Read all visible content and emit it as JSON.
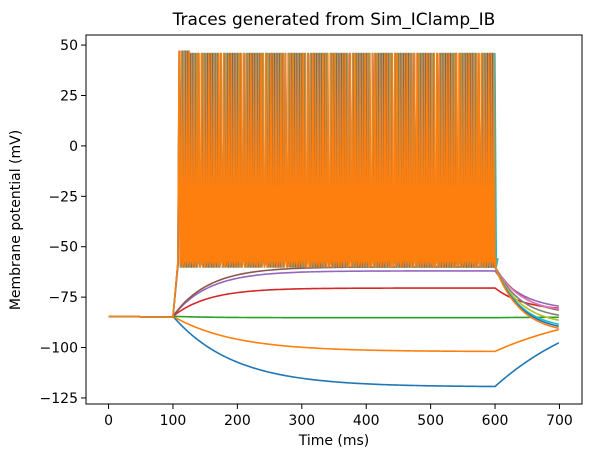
{
  "chart_data": {
    "type": "line",
    "title": "Traces generated from Sim_IClamp_IB",
    "xlabel": "Time (ms)",
    "ylabel": "Membrane potential (mV)",
    "xlim": [
      -35,
      735
    ],
    "ylim": [
      -128,
      55
    ],
    "xticks": [
      0,
      100,
      200,
      300,
      400,
      500,
      600,
      700
    ],
    "yticks": [
      -125,
      -100,
      -75,
      -50,
      -25,
      0,
      25,
      50
    ],
    "grid": false,
    "legend": "none",
    "stimulus": {
      "onset": 100,
      "offset": 600,
      "duration_end": 700
    },
    "spike_range": {
      "peak": 47,
      "trough": -60,
      "first_spike_time": 110
    },
    "series": [
      {
        "color": "#1f77b4",
        "kind": "hyperpolarizing",
        "rest": -84.5,
        "steady_state": -119.5,
        "end_value": -97.5
      },
      {
        "color": "#ff7f0e",
        "kind": "hyperpolarizing",
        "rest": -84.5,
        "steady_state": -102.0,
        "end_value": -91.0
      },
      {
        "color": "#2ca02c",
        "kind": "flat",
        "rest": -84.5,
        "steady_state": -85.2,
        "end_value": -85.0
      },
      {
        "color": "#d62728",
        "kind": "depolarizing",
        "rest": -84.5,
        "steady_state": -70.5,
        "end_value": -80.5
      },
      {
        "color": "#9467bd",
        "kind": "depolarizing",
        "rest": -84.5,
        "steady_state": -62.0,
        "end_value": -79.5
      },
      {
        "color": "#8c564b",
        "kind": "depolarizing",
        "rest": -84.5,
        "steady_state": -60.0,
        "end_value": -81.5
      },
      {
        "color": "#e377c2",
        "kind": "spiking",
        "rest": -84.5,
        "rate_hz": 110,
        "end_value": -81.0
      },
      {
        "color": "#7f7f7f",
        "kind": "spiking",
        "rest": -84.5,
        "rate_hz": 140,
        "end_value": -84.0
      },
      {
        "color": "#bcbd22",
        "kind": "spiking",
        "rest": -84.5,
        "rate_hz": 170,
        "end_value": -86.5
      },
      {
        "color": "#17becf",
        "kind": "spiking",
        "rest": -84.5,
        "rate_hz": 200,
        "end_value": -88.5
      },
      {
        "color": "#1f77b4",
        "kind": "spiking",
        "rest": -84.5,
        "rate_hz": 230,
        "end_value": -89.5
      },
      {
        "color": "#ff7f0e",
        "kind": "spiking",
        "rest": -84.5,
        "rate_hz": 260,
        "end_value": -90.5
      }
    ]
  }
}
